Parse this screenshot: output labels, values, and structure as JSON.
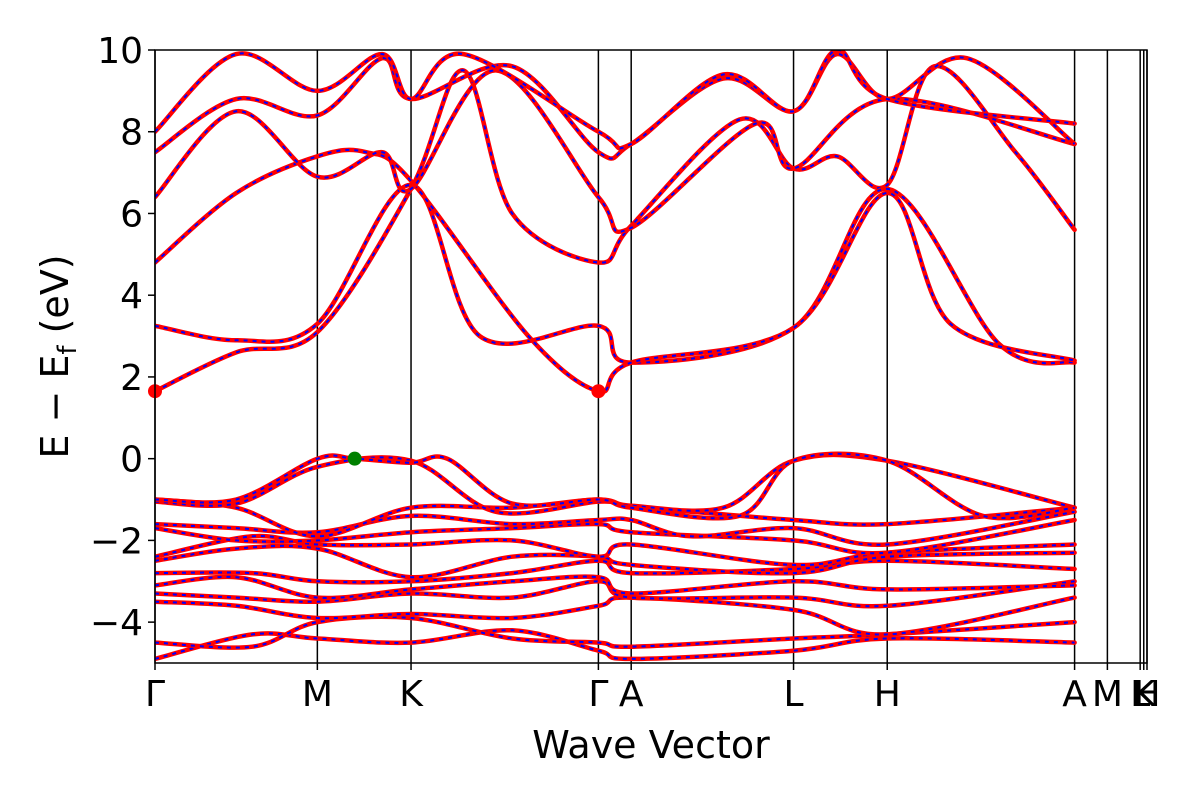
{
  "chart_data": {
    "type": "line",
    "xlabel": "Wave Vector",
    "ylabel": {
      "main": "E − E",
      "sub": "f",
      "unit": " (eV)"
    },
    "ylim": [
      -5,
      10
    ],
    "yticks": [
      -4,
      -2,
      0,
      2,
      4,
      6,
      8,
      10
    ],
    "ytick_labels": [
      "−4",
      "−2",
      "0",
      "2",
      "4",
      "6",
      "8",
      "10"
    ],
    "kpath": [
      {
        "label": "Γ",
        "x": 0.0
      },
      {
        "label": "M",
        "x": 1.0
      },
      {
        "label": "K",
        "x": 1.577
      },
      {
        "label": "Γ",
        "x": 2.731
      },
      {
        "label": "A",
        "x": 2.933
      },
      {
        "label": "L",
        "x": 3.933
      },
      {
        "label": "H",
        "x": 4.51
      },
      {
        "label": "A",
        "x": 5.664
      },
      {
        "label": "M",
        "x": 5.866
      },
      {
        "label": "L",
        "x": 6.068
      },
      {
        "label": "K",
        "x": 6.09
      },
      {
        "label": "H",
        "x": 6.11
      }
    ],
    "xlim": [
      0,
      6.11
    ],
    "series_styles": [
      {
        "color": "#ff0000",
        "style": "solid"
      },
      {
        "color": "#0000ff",
        "style": "dotted"
      }
    ],
    "markers": [
      {
        "x": 0.0,
        "y": 1.65,
        "color": "#ff0000"
      },
      {
        "x": 2.731,
        "y": 1.65,
        "color": "#ff0000"
      },
      {
        "x": 1.23,
        "y": 0.0,
        "color": "#008000"
      }
    ],
    "bands": [
      [
        [
          0,
          -4.9
        ],
        [
          0.6,
          -4.3
        ],
        [
          1.0,
          -4.4
        ],
        [
          1.577,
          -4.5
        ],
        [
          2.2,
          -4.2
        ],
        [
          2.731,
          -4.7
        ],
        [
          2.933,
          -4.9
        ],
        [
          3.933,
          -4.7
        ],
        [
          4.51,
          -4.4
        ],
        [
          5.664,
          -4.5
        ]
      ],
      [
        [
          0,
          -4.5
        ],
        [
          0.6,
          -4.6
        ],
        [
          1.0,
          -4.0
        ],
        [
          1.577,
          -3.9
        ],
        [
          2.2,
          -4.4
        ],
        [
          2.731,
          -4.5
        ],
        [
          2.933,
          -4.6
        ],
        [
          3.933,
          -4.4
        ],
        [
          4.51,
          -4.3
        ],
        [
          5.664,
          -4.0
        ]
      ],
      [
        [
          0,
          -3.5
        ],
        [
          0.5,
          -3.6
        ],
        [
          1.0,
          -3.9
        ],
        [
          1.577,
          -3.8
        ],
        [
          2.2,
          -3.9
        ],
        [
          2.731,
          -3.6
        ],
        [
          2.933,
          -3.4
        ],
        [
          3.933,
          -3.7
        ],
        [
          4.51,
          -4.3
        ],
        [
          5.664,
          -3.4
        ]
      ],
      [
        [
          0,
          -3.3
        ],
        [
          0.5,
          -3.4
        ],
        [
          1.0,
          -3.5
        ],
        [
          1.577,
          -3.3
        ],
        [
          2.2,
          -3.4
        ],
        [
          2.731,
          -3.0
        ],
        [
          2.933,
          -3.4
        ],
        [
          3.933,
          -3.4
        ],
        [
          4.51,
          -3.6
        ],
        [
          5.664,
          -3.0
        ]
      ],
      [
        [
          0,
          -3.1
        ],
        [
          0.5,
          -2.9
        ],
        [
          1.0,
          -3.4
        ],
        [
          1.577,
          -3.2
        ],
        [
          2.2,
          -3.0
        ],
        [
          2.731,
          -2.9
        ],
        [
          2.933,
          -3.3
        ],
        [
          3.933,
          -3.0
        ],
        [
          4.51,
          -3.2
        ],
        [
          5.664,
          -3.1
        ]
      ],
      [
        [
          0,
          -2.8
        ],
        [
          0.6,
          -2.8
        ],
        [
          1.0,
          -3.0
        ],
        [
          1.577,
          -3.0
        ],
        [
          2.2,
          -2.8
        ],
        [
          2.731,
          -2.5
        ],
        [
          2.933,
          -2.8
        ],
        [
          3.933,
          -2.7
        ],
        [
          4.51,
          -2.5
        ],
        [
          5.664,
          -2.7
        ]
      ],
      [
        [
          0,
          -2.5
        ],
        [
          0.5,
          -2.2
        ],
        [
          1.0,
          -2.2
        ],
        [
          1.577,
          -2.9
        ],
        [
          2.2,
          -2.4
        ],
        [
          2.731,
          -2.4
        ],
        [
          2.933,
          -2.6
        ],
        [
          3.933,
          -2.8
        ],
        [
          4.51,
          -2.4
        ],
        [
          5.664,
          -2.3
        ]
      ],
      [
        [
          0,
          -2.4
        ],
        [
          0.6,
          -1.9
        ],
        [
          1.0,
          -2.1
        ],
        [
          1.577,
          -2.1
        ],
        [
          2.2,
          -2.0
        ],
        [
          2.731,
          -2.4
        ],
        [
          2.933,
          -2.1
        ],
        [
          3.933,
          -2.6
        ],
        [
          4.51,
          -2.3
        ],
        [
          5.664,
          -2.1
        ]
      ],
      [
        [
          0,
          -1.7
        ],
        [
          0.5,
          -2.0
        ],
        [
          1.0,
          -2.0
        ],
        [
          1.577,
          -1.8
        ],
        [
          2.2,
          -1.7
        ],
        [
          2.731,
          -1.6
        ],
        [
          2.933,
          -1.8
        ],
        [
          3.933,
          -2.0
        ],
        [
          4.51,
          -2.3
        ],
        [
          5.664,
          -1.5
        ]
      ],
      [
        [
          0,
          -1.6
        ],
        [
          0.5,
          -1.7
        ],
        [
          1.0,
          -1.8
        ],
        [
          1.577,
          -1.4
        ],
        [
          2.2,
          -1.6
        ],
        [
          2.731,
          -1.5
        ],
        [
          2.933,
          -1.5
        ],
        [
          3.3,
          -1.9
        ],
        [
          3.933,
          -1.7
        ],
        [
          4.51,
          -2.1
        ],
        [
          5.664,
          -1.3
        ]
      ],
      [
        [
          0,
          -1.0
        ],
        [
          0.5,
          -1.2
        ],
        [
          1.0,
          -1.9
        ],
        [
          1.577,
          -1.2
        ],
        [
          2.2,
          -1.2
        ],
        [
          2.731,
          -1.0
        ],
        [
          2.933,
          -1.2
        ],
        [
          3.3,
          -1.3
        ],
        [
          3.933,
          -1.5
        ],
        [
          4.51,
          -1.6
        ],
        [
          5.664,
          -1.2
        ]
      ],
      [
        [
          0,
          -1.05
        ],
        [
          0.5,
          -1.1
        ],
        [
          1.0,
          -0.2
        ],
        [
          1.577,
          -0.05
        ],
        [
          2.1,
          -1.3
        ],
        [
          2.731,
          -1.05
        ],
        [
          2.933,
          -1.15
        ],
        [
          3.5,
          -1.2
        ],
        [
          3.933,
          -0.05
        ],
        [
          4.51,
          -0.05
        ],
        [
          5.664,
          -1.2
        ]
      ],
      [
        [
          0,
          -1.0
        ],
        [
          0.5,
          -1.0
        ],
        [
          1.0,
          0.0
        ],
        [
          1.23,
          0.0
        ],
        [
          1.577,
          -0.1
        ],
        [
          1.8,
          0.0
        ],
        [
          2.2,
          -1.1
        ],
        [
          2.731,
          -1.0
        ],
        [
          2.933,
          -1.2
        ],
        [
          3.6,
          -1.4
        ],
        [
          3.933,
          -0.05
        ],
        [
          4.51,
          -0.05
        ],
        [
          5.1,
          -1.4
        ],
        [
          5.664,
          -1.2
        ]
      ],
      [
        [
          0,
          1.65
        ],
        [
          0.5,
          2.6
        ],
        [
          1.0,
          3.1
        ],
        [
          1.577,
          6.6
        ],
        [
          1.9,
          9.5
        ],
        [
          2.2,
          6.0
        ],
        [
          2.731,
          4.8
        ],
        [
          2.933,
          5.7
        ],
        [
          3.6,
          8.3
        ],
        [
          3.933,
          7.1
        ],
        [
          4.2,
          7.4
        ],
        [
          4.51,
          6.7
        ],
        [
          4.8,
          9.6
        ],
        [
          5.3,
          7.5
        ],
        [
          5.664,
          5.6
        ]
      ],
      [
        [
          0,
          3.25
        ],
        [
          0.5,
          2.9
        ],
        [
          1.0,
          3.3
        ],
        [
          1.577,
          6.7
        ],
        [
          2.0,
          3.0
        ],
        [
          2.731,
          3.25
        ],
        [
          2.933,
          2.35
        ],
        [
          3.933,
          3.2
        ],
        [
          4.51,
          6.6
        ],
        [
          5.2,
          2.8
        ],
        [
          5.664,
          2.35
        ]
      ],
      [
        [
          0,
          4.8
        ],
        [
          0.5,
          6.5
        ],
        [
          1.0,
          7.4
        ],
        [
          1.3,
          7.5
        ],
        [
          1.577,
          6.8
        ],
        [
          2.3,
          3.0
        ],
        [
          2.731,
          1.65
        ],
        [
          2.933,
          2.35
        ],
        [
          3.933,
          3.2
        ],
        [
          4.51,
          6.5
        ],
        [
          4.9,
          3.3
        ],
        [
          5.664,
          2.4
        ]
      ],
      [
        [
          0,
          6.4
        ],
        [
          0.5,
          8.5
        ],
        [
          1.0,
          6.9
        ],
        [
          1.4,
          7.5
        ],
        [
          1.577,
          6.6
        ],
        [
          2.1,
          9.5
        ],
        [
          2.731,
          6.4
        ],
        [
          2.933,
          5.65
        ],
        [
          3.7,
          8.2
        ],
        [
          3.933,
          7.1
        ],
        [
          4.51,
          8.8
        ],
        [
          5.664,
          7.7
        ]
      ],
      [
        [
          0,
          7.5
        ],
        [
          0.5,
          8.8
        ],
        [
          1.0,
          8.4
        ],
        [
          1.4,
          9.8
        ],
        [
          1.577,
          8.8
        ],
        [
          2.2,
          9.6
        ],
        [
          2.731,
          7.5
        ],
        [
          2.933,
          7.7
        ],
        [
          3.5,
          9.3
        ],
        [
          3.933,
          8.5
        ],
        [
          4.2,
          9.9
        ],
        [
          4.51,
          8.8
        ],
        [
          5.0,
          9.8
        ],
        [
          5.664,
          7.7
        ]
      ],
      [
        [
          0,
          8.0
        ],
        [
          0.5,
          9.9
        ],
        [
          1.0,
          9.0
        ],
        [
          1.4,
          9.9
        ],
        [
          1.577,
          8.8
        ],
        [
          1.9,
          9.9
        ],
        [
          2.731,
          8.0
        ],
        [
          2.933,
          7.7
        ],
        [
          3.5,
          9.4
        ],
        [
          3.933,
          8.5
        ],
        [
          4.2,
          10.0
        ],
        [
          4.51,
          8.8
        ],
        [
          5.664,
          8.2
        ]
      ]
    ]
  }
}
